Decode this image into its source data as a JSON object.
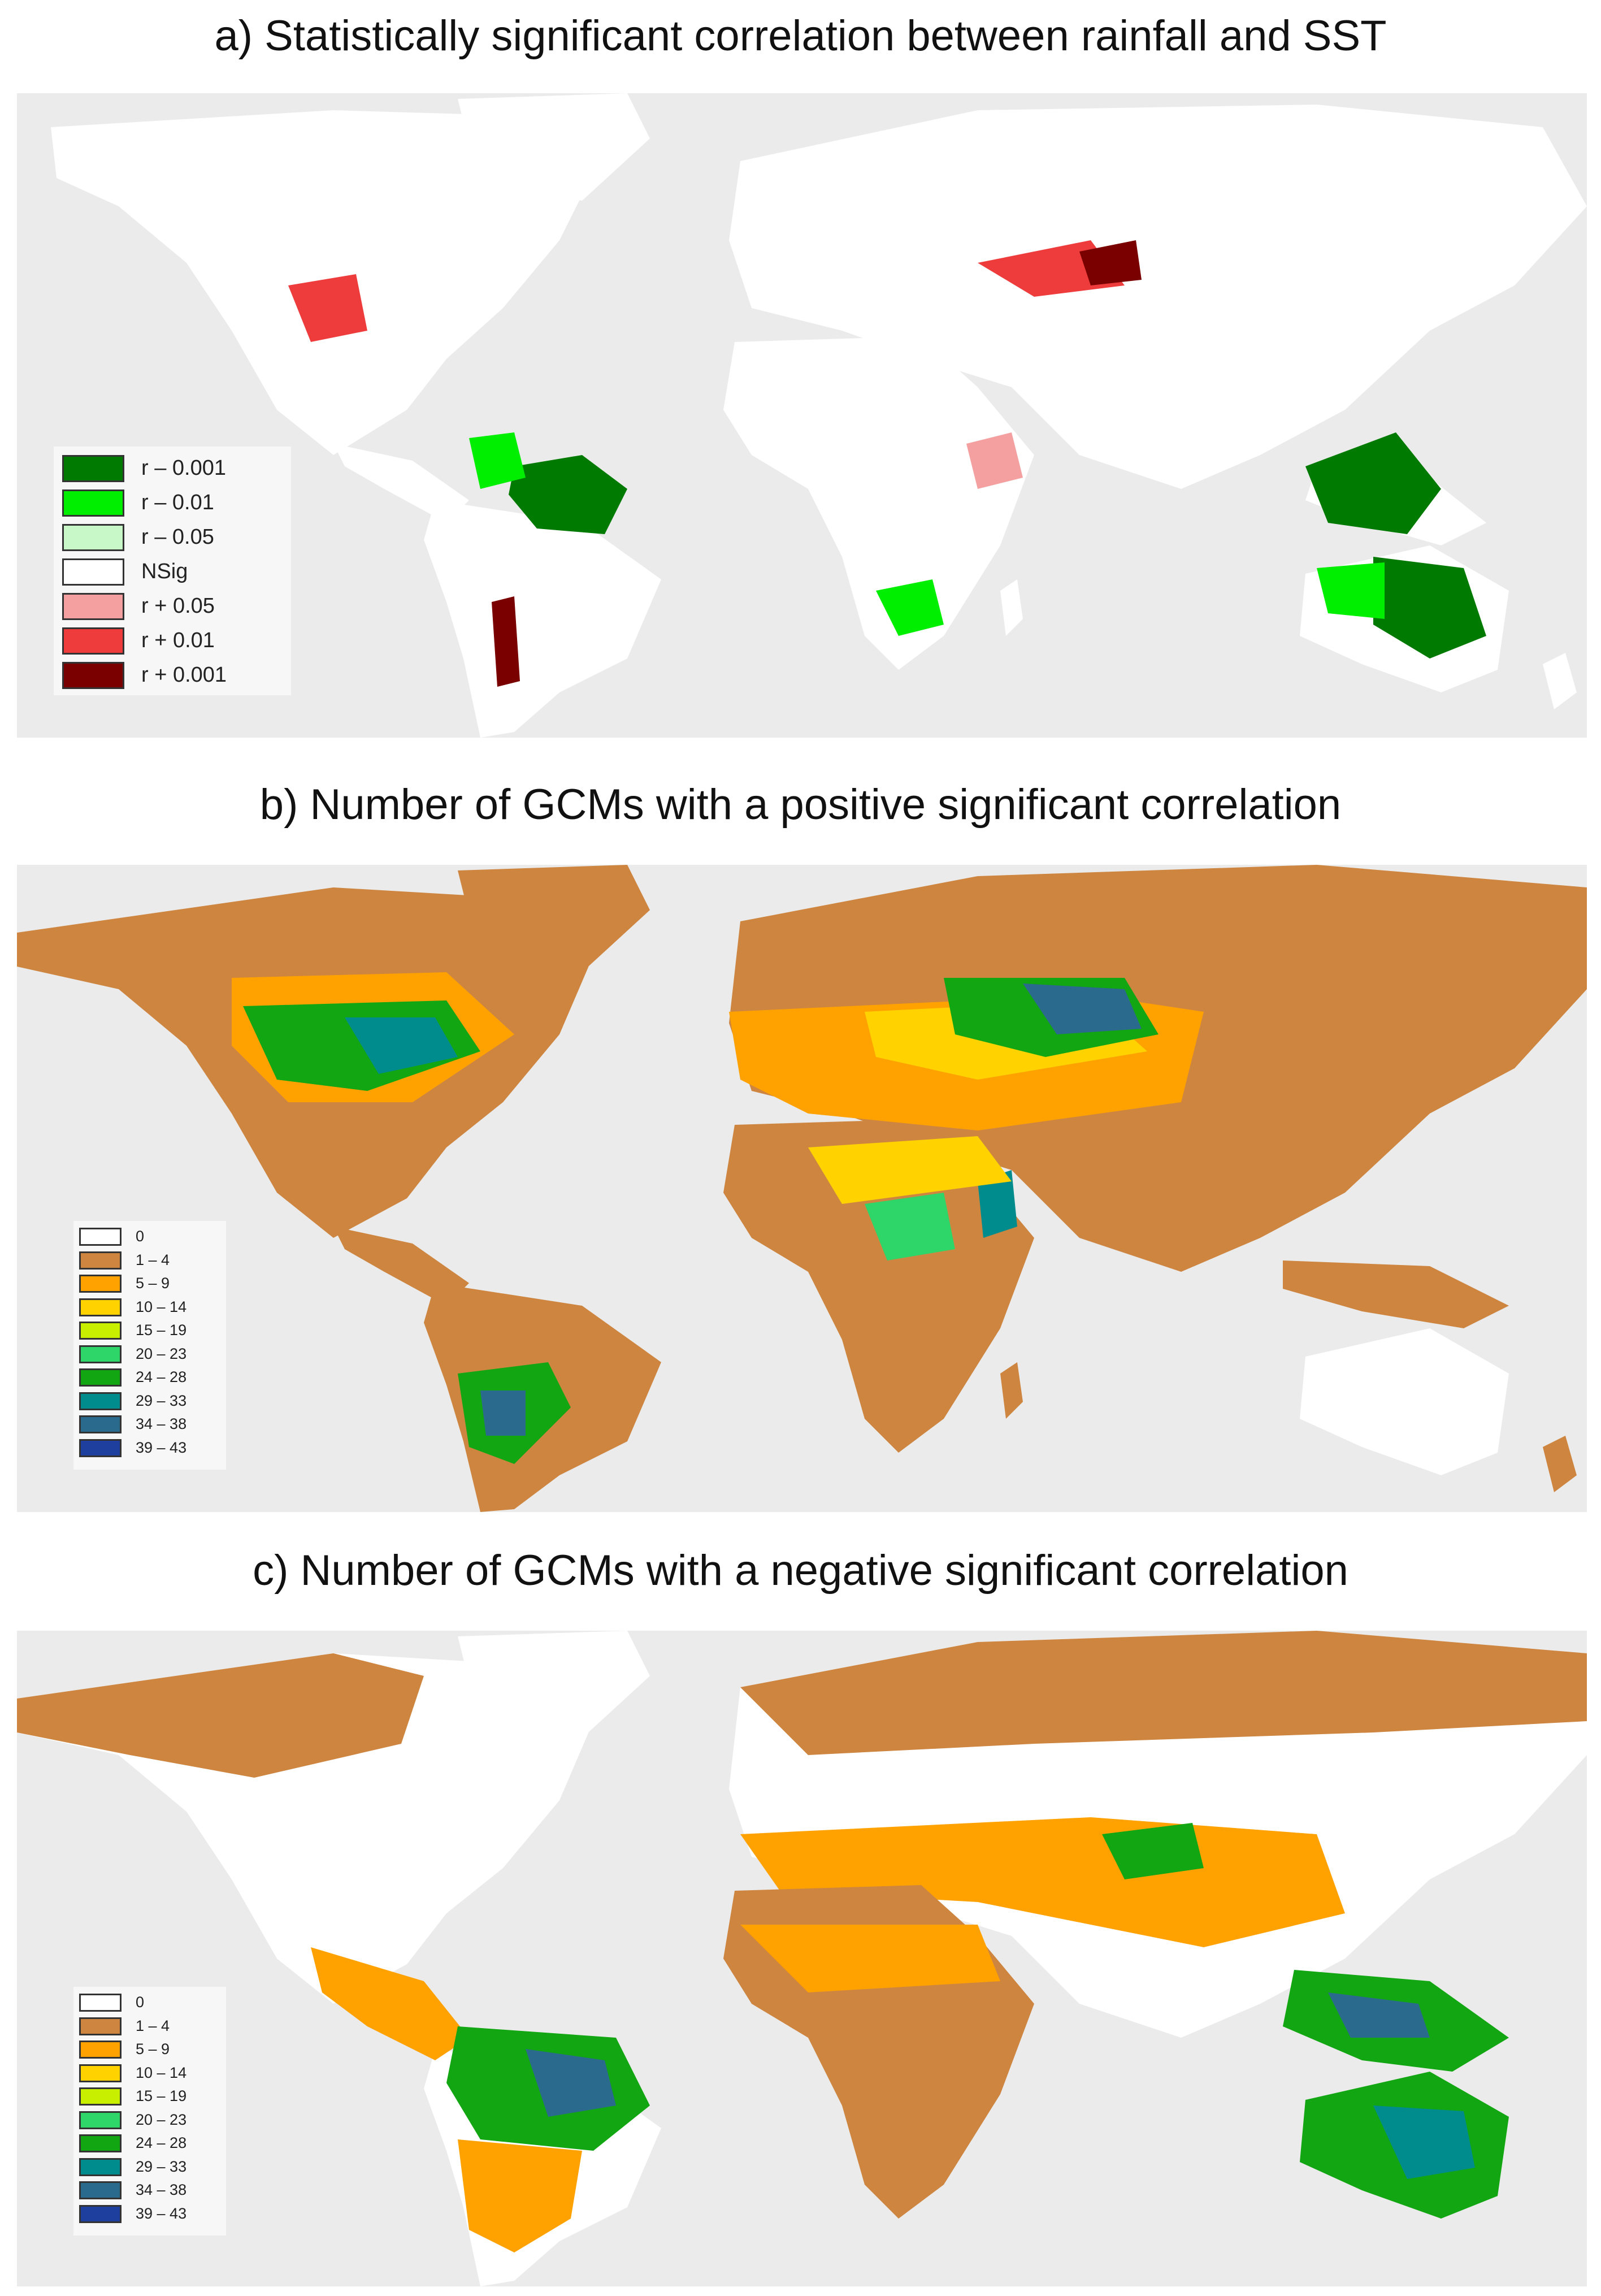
{
  "colors": {
    "background": "#ebebeb",
    "land_nodata": "#ffffff"
  },
  "panels": [
    {
      "title": "a) Statistically significant correlation between rainfall and SST",
      "legend": [
        {
          "label": "r – 0.001",
          "color": "#007a00"
        },
        {
          "label": "r – 0.01",
          "color": "#00ee00"
        },
        {
          "label": "r – 0.05",
          "color": "#c8f7c8"
        },
        {
          "label": "NSig",
          "color": "#ffffff"
        },
        {
          "label": "r + 0.05",
          "color": "#f5a0a0"
        },
        {
          "label": "r + 0.01",
          "color": "#ee3c3c"
        },
        {
          "label": "r + 0.001",
          "color": "#7a0000"
        }
      ]
    },
    {
      "title": "b) Number of GCMs with a positive significant correlation",
      "legend": [
        {
          "label": "0",
          "color": "#ffffff"
        },
        {
          "label": "1 – 4",
          "color": "#cd8540"
        },
        {
          "label": "5 – 9",
          "color": "#ffa200"
        },
        {
          "label": "10 – 14",
          "color": "#ffd200"
        },
        {
          "label": "15 – 19",
          "color": "#c8ee00"
        },
        {
          "label": "20 – 23",
          "color": "#2ed66a"
        },
        {
          "label": "24 – 28",
          "color": "#12a612"
        },
        {
          "label": "29 – 33",
          "color": "#008c8c"
        },
        {
          "label": "34 – 38",
          "color": "#2a6a8c"
        },
        {
          "label": "39 – 43",
          "color": "#1f3f9e"
        }
      ]
    },
    {
      "title": "c) Number of GCMs with a negative significant correlation",
      "legend": [
        {
          "label": "0",
          "color": "#ffffff"
        },
        {
          "label": "1 – 4",
          "color": "#cd8540"
        },
        {
          "label": "5 – 9",
          "color": "#ffa200"
        },
        {
          "label": "10 – 14",
          "color": "#ffd200"
        },
        {
          "label": "15 – 19",
          "color": "#c8ee00"
        },
        {
          "label": "20 – 23",
          "color": "#2ed66a"
        },
        {
          "label": "24 – 28",
          "color": "#12a612"
        },
        {
          "label": "29 – 33",
          "color": "#008c8c"
        },
        {
          "label": "34 – 38",
          "color": "#2a6a8c"
        },
        {
          "label": "39 – 43",
          "color": "#1f3f9e"
        }
      ]
    }
  ]
}
